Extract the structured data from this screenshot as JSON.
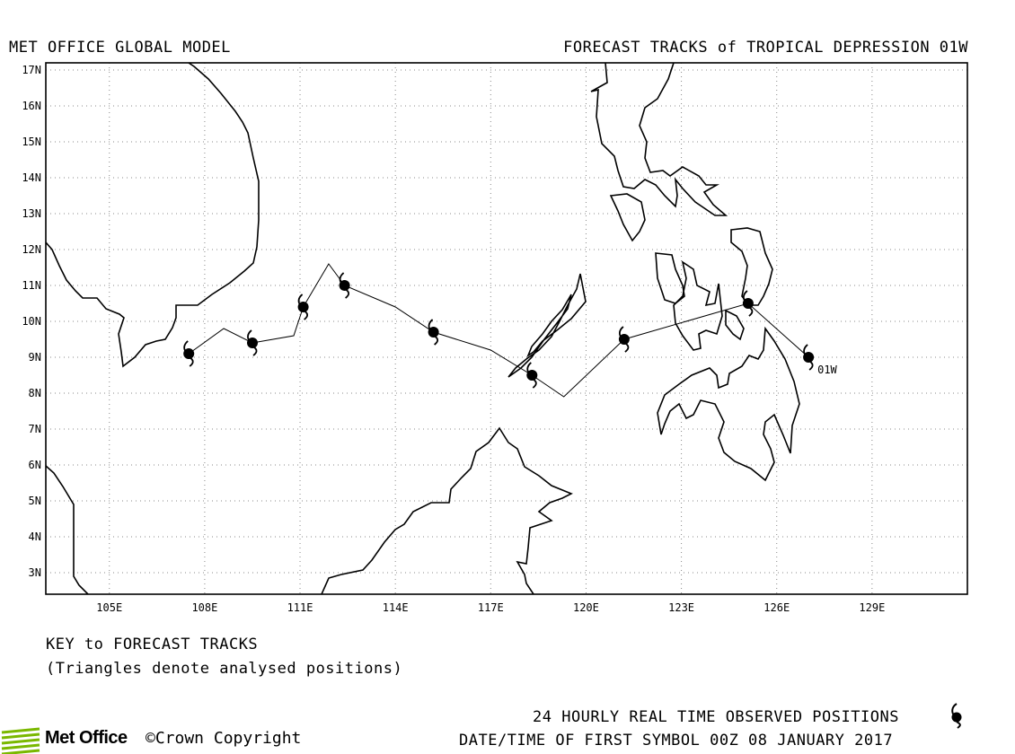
{
  "header": {
    "model_title": "MET OFFICE GLOBAL MODEL",
    "forecast_title": "FORECAST TRACKS of TROPICAL DEPRESSION 01W"
  },
  "map": {
    "lon_range": [
      103,
      132
    ],
    "lat_range": [
      2.4,
      17.2
    ],
    "lon_ticks": [
      {
        "value": 105,
        "label": "105E"
      },
      {
        "value": 108,
        "label": "108E"
      },
      {
        "value": 111,
        "label": "111E"
      },
      {
        "value": 114,
        "label": "114E"
      },
      {
        "value": 117,
        "label": "117E"
      },
      {
        "value": 120,
        "label": "120E"
      },
      {
        "value": 123,
        "label": "123E"
      },
      {
        "value": 126,
        "label": "126E"
      },
      {
        "value": 129,
        "label": "129E"
      }
    ],
    "lat_ticks": [
      {
        "value": 3,
        "label": "3N"
      },
      {
        "value": 4,
        "label": "4N"
      },
      {
        "value": 5,
        "label": "5N"
      },
      {
        "value": 6,
        "label": "6N"
      },
      {
        "value": 7,
        "label": "7N"
      },
      {
        "value": 8,
        "label": "8N"
      },
      {
        "value": 9,
        "label": "9N"
      },
      {
        "value": 10,
        "label": "10N"
      },
      {
        "value": 11,
        "label": "11N"
      },
      {
        "value": 12,
        "label": "12N"
      },
      {
        "value": 13,
        "label": "13N"
      },
      {
        "value": 14,
        "label": "14N"
      },
      {
        "value": 15,
        "label": "15N"
      },
      {
        "value": 16,
        "label": "16N"
      },
      {
        "value": 17,
        "label": "17N"
      }
    ],
    "grid": true,
    "storm_label": "01W",
    "track": [
      {
        "lon": 127.0,
        "lat": 9.0
      },
      {
        "lon": 125.1,
        "lat": 10.5
      },
      {
        "lon": 121.2,
        "lat": 9.5
      },
      {
        "lon": 119.3,
        "lat": 7.9
      },
      {
        "lon": 118.3,
        "lat": 8.5
      },
      {
        "lon": 117.0,
        "lat": 9.2
      },
      {
        "lon": 115.2,
        "lat": 9.7
      },
      {
        "lon": 114.0,
        "lat": 10.4
      },
      {
        "lon": 112.4,
        "lat": 11.0
      },
      {
        "lon": 111.9,
        "lat": 11.6
      },
      {
        "lon": 111.1,
        "lat": 10.4
      },
      {
        "lon": 110.8,
        "lat": 9.6
      },
      {
        "lon": 109.5,
        "lat": 9.4
      },
      {
        "lon": 108.6,
        "lat": 9.8
      },
      {
        "lon": 107.5,
        "lat": 9.1
      }
    ],
    "positions": [
      {
        "lon": 127.0,
        "lat": 9.0
      },
      {
        "lon": 125.1,
        "lat": 10.5
      },
      {
        "lon": 121.2,
        "lat": 9.5
      },
      {
        "lon": 118.3,
        "lat": 8.5
      },
      {
        "lon": 115.2,
        "lat": 9.7
      },
      {
        "lon": 112.4,
        "lat": 11.0
      },
      {
        "lon": 111.1,
        "lat": 10.4
      },
      {
        "lon": 109.5,
        "lat": 9.4
      },
      {
        "lon": 107.5,
        "lat": 9.1
      }
    ]
  },
  "key": {
    "title": "KEY to FORECAST TRACKS",
    "note": "(Triangles denote analysed positions)"
  },
  "footer": {
    "observed_label": "24 HOURLY REAL TIME OBSERVED POSITIONS",
    "datetime_label": "DATE/TIME OF FIRST SYMBOL 00Z 08 JANUARY 2017",
    "logo_text": "Met Office",
    "copyright": "©Crown Copyright"
  },
  "colors": {
    "background": "#ffffff",
    "coastline": "#000000",
    "grid": "#888888",
    "logo_green": "#7ab800"
  }
}
